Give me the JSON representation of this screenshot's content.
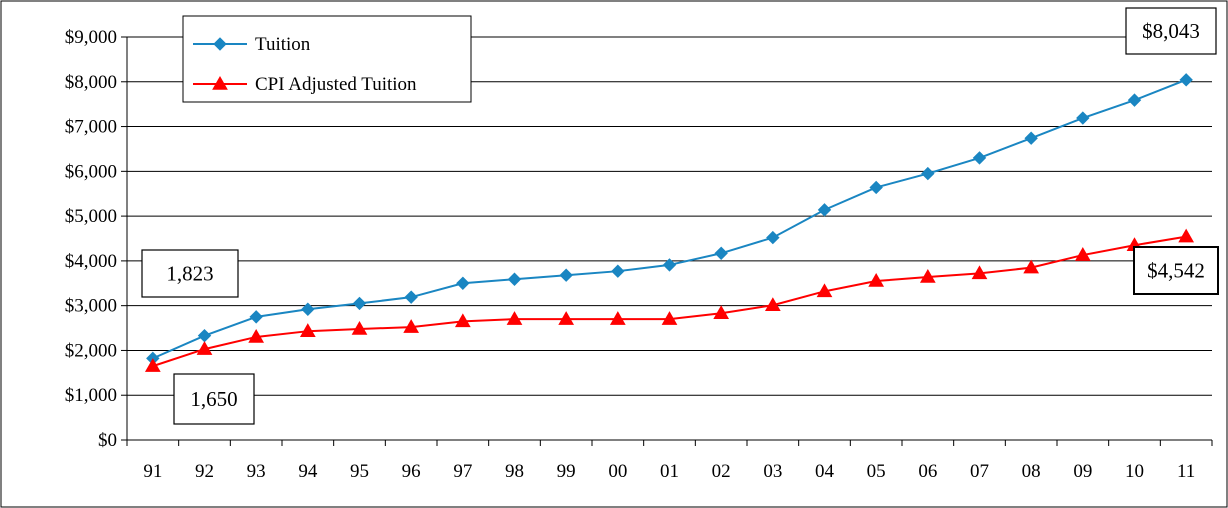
{
  "chart_data": {
    "type": "line",
    "title": "",
    "xlabel": "",
    "ylabel": "",
    "categories": [
      "91",
      "92",
      "93",
      "94",
      "95",
      "96",
      "97",
      "98",
      "99",
      "00",
      "01",
      "02",
      "03",
      "04",
      "05",
      "06",
      "07",
      "08",
      "09",
      "10",
      "11"
    ],
    "ylim": [
      0,
      9000
    ],
    "yticks": [
      0,
      1000,
      2000,
      3000,
      4000,
      5000,
      6000,
      7000,
      8000,
      9000
    ],
    "ytick_labels": [
      "$0",
      "$1,000",
      "$2,000",
      "$3,000",
      "$4,000",
      "$5,000",
      "$6,000",
      "$7,000",
      "$8,000",
      "$9,000"
    ],
    "grid": "horizontal",
    "legend_placement": "top-left",
    "series": [
      {
        "name": "Tuition",
        "color": "#1a86c2",
        "marker": "diamond",
        "values": [
          1823,
          2330,
          2750,
          2920,
          3050,
          3190,
          3500,
          3590,
          3680,
          3770,
          3910,
          4170,
          4520,
          5140,
          5640,
          5950,
          6300,
          6740,
          7190,
          7590,
          8043
        ]
      },
      {
        "name": "CPI Adjusted Tuition",
        "color": "#ff0000",
        "marker": "triangle",
        "values": [
          1650,
          2030,
          2300,
          2430,
          2480,
          2520,
          2650,
          2700,
          2700,
          2700,
          2700,
          2830,
          3010,
          3320,
          3550,
          3640,
          3720,
          3850,
          4130,
          4350,
          4542
        ]
      }
    ],
    "annotations": [
      {
        "text": "$8,043",
        "series": 0,
        "index": 20
      },
      {
        "text": "$4,542",
        "series": 1,
        "index": 20
      },
      {
        "text": "1,823",
        "series": 0,
        "index": 0
      },
      {
        "text": "1,650",
        "series": 1,
        "index": 0
      }
    ]
  }
}
